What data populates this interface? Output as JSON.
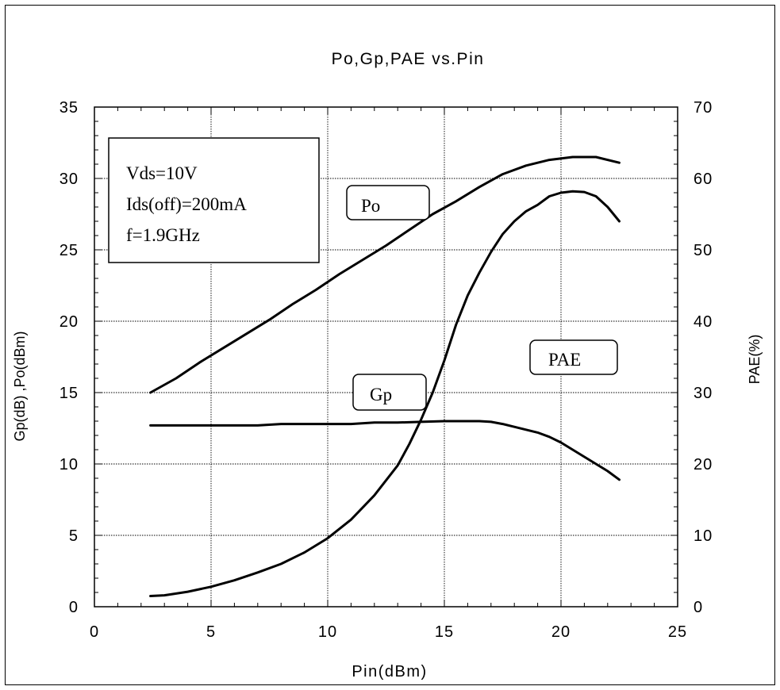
{
  "chart_data": {
    "type": "line",
    "title": "Po,Gp,PAE vs.Pin",
    "xlabel": "Pin(dBm)",
    "ylabel": "Gp(dB) ,Po(dBm)",
    "y2label": "PAE(%)",
    "xlim": [
      0,
      25
    ],
    "ylim": [
      0,
      35
    ],
    "y2lim": [
      0,
      70
    ],
    "xticks": [
      0,
      5,
      10,
      15,
      20,
      25
    ],
    "yticks": [
      0,
      5,
      10,
      15,
      20,
      25,
      30,
      35
    ],
    "y2ticks": [
      0,
      10,
      20,
      30,
      40,
      50,
      60,
      70
    ],
    "grid": true,
    "conditions": [
      "Vds=10V",
      "Ids(off)=200mA",
      "f=1.9GHz"
    ],
    "series": [
      {
        "name": "Po",
        "axis": "left",
        "x": [
          2.4,
          3.5,
          4.5,
          6,
          7.5,
          8.5,
          9.5,
          10.5,
          11.5,
          12.5,
          13.5,
          14.5,
          15.5,
          16.5,
          17.5,
          18.5,
          19.5,
          20.5,
          21.5,
          22.5
        ],
        "y": [
          15.0,
          16.0,
          17.1,
          18.6,
          20.1,
          21.2,
          22.2,
          23.3,
          24.3,
          25.3,
          26.4,
          27.5,
          28.4,
          29.4,
          30.3,
          30.9,
          31.3,
          31.5,
          31.5,
          31.1
        ]
      },
      {
        "name": "Gp",
        "axis": "left",
        "x": [
          2.4,
          5,
          7,
          8,
          10,
          11,
          12,
          13,
          14,
          15,
          16,
          16.5,
          17,
          17.5,
          18,
          18.5,
          19,
          19.5,
          20,
          20.5,
          21,
          21.5,
          22,
          22.5
        ],
        "y": [
          12.7,
          12.7,
          12.7,
          12.8,
          12.8,
          12.8,
          12.9,
          12.9,
          12.95,
          13.0,
          13.0,
          13.0,
          12.95,
          12.8,
          12.6,
          12.4,
          12.2,
          11.9,
          11.5,
          11.0,
          10.5,
          10.0,
          9.5,
          8.9
        ]
      },
      {
        "name": "PAE",
        "axis": "right",
        "x": [
          2.4,
          3,
          4,
          5,
          6,
          7,
          8,
          9,
          10,
          11,
          12,
          13,
          13.5,
          14,
          14.5,
          15,
          15.5,
          16,
          16.5,
          17,
          17.5,
          18,
          18.5,
          19,
          19.5,
          20,
          20.5,
          21,
          21.5,
          22,
          22.5
        ],
        "y": [
          1.5,
          1.6,
          2.1,
          2.8,
          3.7,
          4.8,
          6.0,
          7.6,
          9.6,
          12.2,
          15.6,
          19.8,
          22.8,
          26.2,
          30.0,
          34.5,
          39.5,
          43.6,
          46.8,
          49.7,
          52.2,
          54.0,
          55.4,
          56.3,
          57.5,
          58.0,
          58.2,
          58.1,
          57.5,
          56.0,
          54.0
        ]
      }
    ]
  }
}
